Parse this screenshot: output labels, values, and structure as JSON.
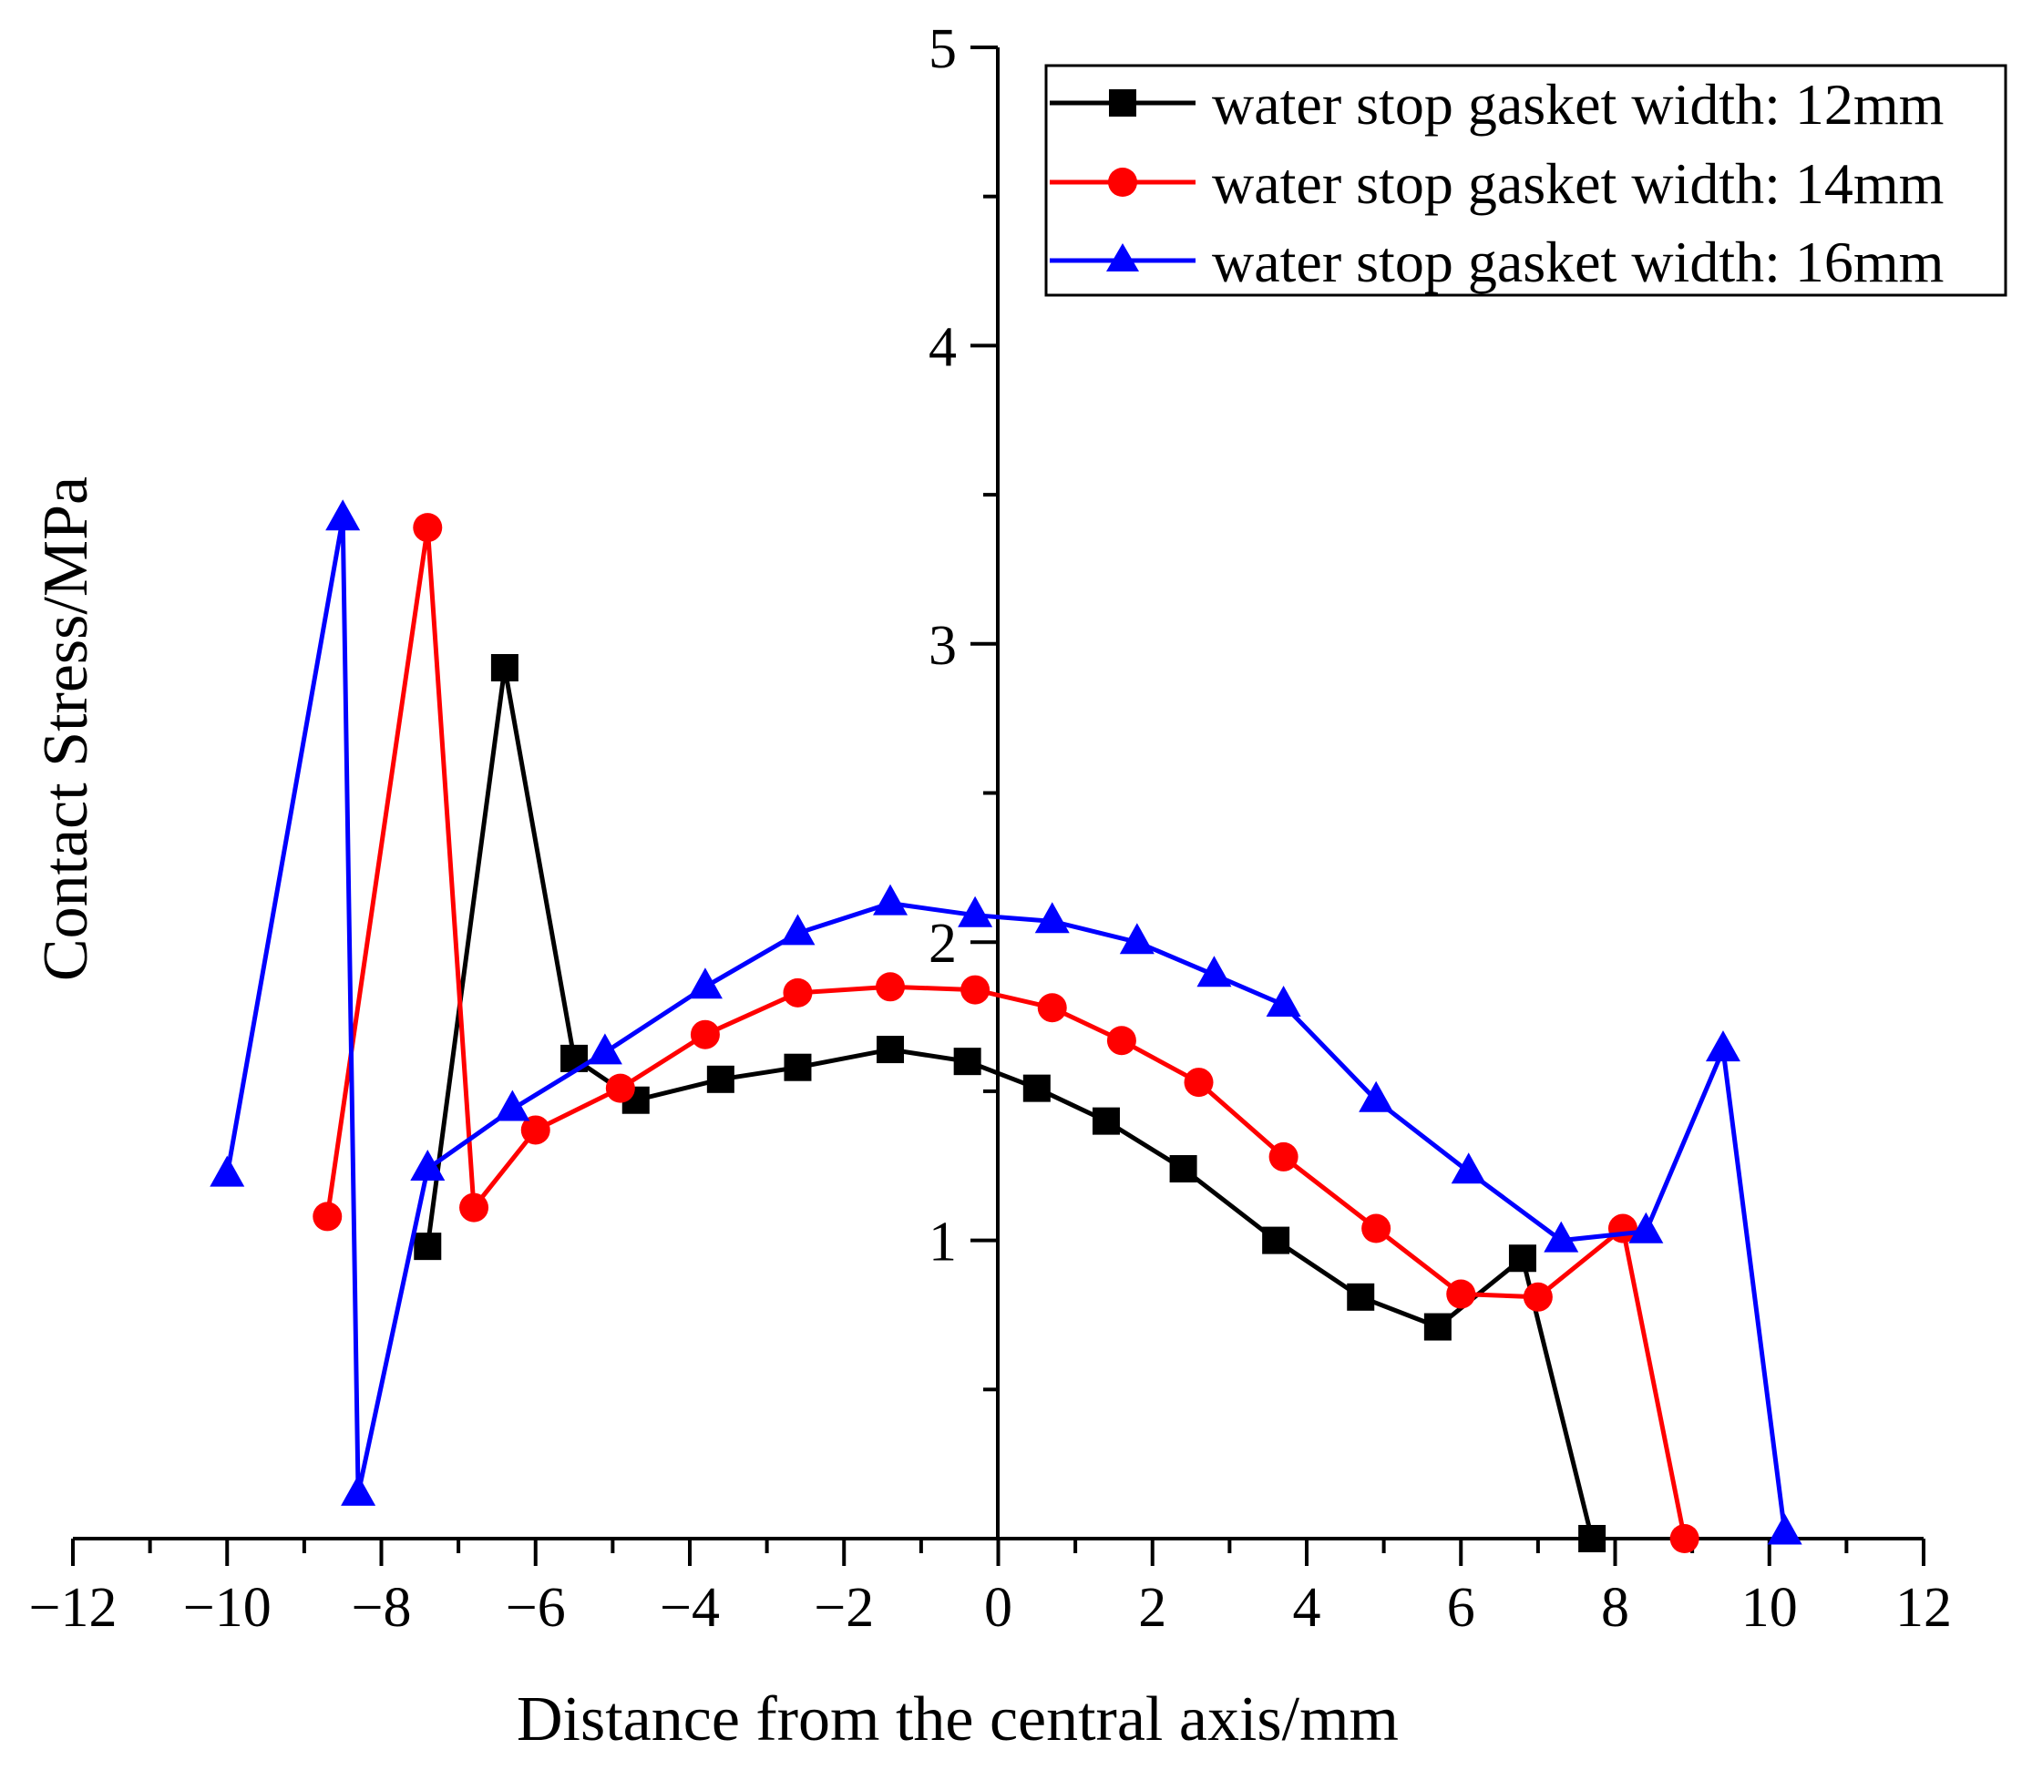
{
  "chart_data": {
    "type": "line",
    "title": "",
    "xlabel": "Distance from the central axis/mm",
    "ylabel": "Contact Stress/MPa",
    "xlim": [
      -12,
      12
    ],
    "ylim": [
      0,
      5
    ],
    "xticks": [
      -12,
      -10,
      -8,
      -6,
      -4,
      -2,
      0,
      2,
      4,
      6,
      8,
      10,
      12
    ],
    "xtick_labels": [
      "−12",
      "−10",
      "−8",
      "−6",
      "−4",
      "−2",
      "0",
      "2",
      "4",
      "6",
      "8",
      "10",
      "12"
    ],
    "yticks": [
      1,
      2,
      3,
      4,
      5
    ],
    "ytick_labels": [
      "1",
      "2",
      "3",
      "4",
      "5"
    ],
    "grid": false,
    "legend_position": "top-right",
    "series": [
      {
        "name": "water stop gasket width: 12mm",
        "color": "#000000",
        "marker": "square",
        "x": [
          -7.4,
          -6.4,
          -5.5,
          -4.7,
          -3.6,
          -2.6,
          -1.4,
          -0.4,
          0.5,
          1.4,
          2.4,
          3.6,
          4.7,
          5.7,
          6.8,
          7.7
        ],
        "y": [
          0.98,
          2.92,
          1.61,
          1.47,
          1.54,
          1.58,
          1.64,
          1.6,
          1.51,
          1.4,
          1.24,
          1.0,
          0.81,
          0.71,
          0.94,
          0.0
        ]
      },
      {
        "name": "water stop gasket width: 14mm",
        "color": "#ff0000",
        "marker": "circle",
        "x": [
          -8.7,
          -7.4,
          -6.8,
          -6.0,
          -4.9,
          -3.8,
          -2.6,
          -1.4,
          -0.3,
          0.7,
          1.6,
          2.6,
          3.7,
          4.9,
          6.0,
          7.0,
          8.1,
          8.9
        ],
        "y": [
          1.08,
          3.39,
          1.11,
          1.37,
          1.51,
          1.69,
          1.83,
          1.85,
          1.84,
          1.78,
          1.67,
          1.53,
          1.28,
          1.04,
          0.82,
          0.81,
          1.04,
          0.0
        ]
      },
      {
        "name": "water stop gasket width: 16mm",
        "color": "#0000ff",
        "marker": "triangle",
        "x": [
          -10.0,
          -8.5,
          -8.3,
          -7.4,
          -6.3,
          -5.1,
          -3.8,
          -2.6,
          -1.4,
          -0.3,
          0.7,
          1.8,
          2.8,
          3.7,
          4.9,
          6.1,
          7.3,
          8.4,
          9.4,
          10.2
        ],
        "y": [
          1.22,
          3.42,
          0.15,
          1.24,
          1.44,
          1.63,
          1.85,
          2.03,
          2.13,
          2.09,
          2.07,
          2.0,
          1.89,
          1.79,
          1.47,
          1.23,
          1.0,
          1.03,
          1.64,
          0.02
        ]
      }
    ]
  }
}
